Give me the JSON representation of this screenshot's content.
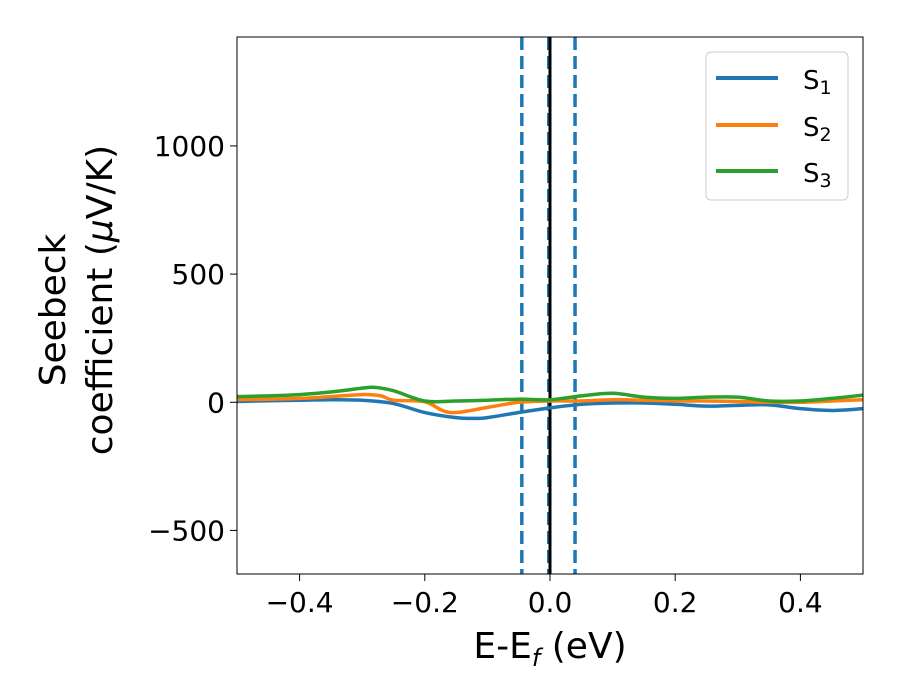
{
  "chart_data": {
    "type": "line",
    "title": "",
    "xlabel": {
      "main": "E-E",
      "sub": "f",
      "unit": " (eV)"
    },
    "ylabel": {
      "line1": "Seebeck",
      "line2": "coefficient  (",
      "mu": "μ",
      "unit": "V/K)"
    },
    "xlim": [
      -0.5,
      0.5
    ],
    "ylim": [
      -670,
      1425
    ],
    "xticks": [
      -0.4,
      -0.2,
      0.0,
      0.2,
      0.4
    ],
    "xtick_labels": [
      "−0.4",
      "−0.2",
      "0.0",
      "0.2",
      "0.4"
    ],
    "yticks": [
      -500,
      0,
      500,
      1000
    ],
    "ytick_labels": [
      "−500",
      "0",
      "500",
      "1000"
    ],
    "grid": false,
    "legend_position": "top-right",
    "vlines": [
      {
        "x": -0.045,
        "style": "dashed",
        "color": "#1f77b4"
      },
      {
        "x": -0.002,
        "style": "dashed",
        "color": "#1f77b4"
      },
      {
        "x": 0.0,
        "style": "solid",
        "color": "#000000"
      },
      {
        "x": 0.04,
        "style": "dashed",
        "color": "#1f77b4"
      }
    ],
    "series": [
      {
        "name": "S",
        "sub": "1",
        "color": "#1f77b4",
        "x": [
          -0.5,
          -0.45,
          -0.4,
          -0.35,
          -0.3,
          -0.25,
          -0.2,
          -0.15,
          -0.12,
          -0.1,
          -0.05,
          0.0,
          0.05,
          0.1,
          0.15,
          0.2,
          0.25,
          0.3,
          0.35,
          0.4,
          0.45,
          0.5
        ],
        "y": [
          3,
          6,
          8,
          10,
          8,
          -5,
          -40,
          -60,
          -63,
          -60,
          -40,
          -22,
          -8,
          -3,
          -3,
          -8,
          -15,
          -12,
          -10,
          -25,
          -32,
          -25
        ]
      },
      {
        "name": "S",
        "sub": "2",
        "color": "#ff7f0e",
        "x": [
          -0.5,
          -0.45,
          -0.4,
          -0.35,
          -0.3,
          -0.27,
          -0.25,
          -0.2,
          -0.16,
          -0.1,
          -0.05,
          0.0,
          0.05,
          0.1,
          0.15,
          0.2,
          0.25,
          0.3,
          0.35,
          0.4,
          0.45,
          0.5
        ],
        "y": [
          10,
          12,
          15,
          22,
          30,
          25,
          8,
          2,
          -40,
          -20,
          0,
          5,
          5,
          10,
          8,
          5,
          5,
          3,
          0,
          0,
          5,
          10
        ]
      },
      {
        "name": "S",
        "sub": "3",
        "color": "#2ca02c",
        "x": [
          -0.5,
          -0.45,
          -0.4,
          -0.35,
          -0.3,
          -0.28,
          -0.25,
          -0.2,
          -0.15,
          -0.1,
          -0.05,
          0.0,
          0.05,
          0.1,
          0.15,
          0.2,
          0.25,
          0.3,
          0.35,
          0.4,
          0.45,
          0.5
        ],
        "y": [
          22,
          25,
          30,
          40,
          55,
          58,
          45,
          5,
          5,
          8,
          12,
          10,
          25,
          35,
          20,
          15,
          20,
          20,
          5,
          5,
          15,
          28
        ]
      }
    ]
  }
}
